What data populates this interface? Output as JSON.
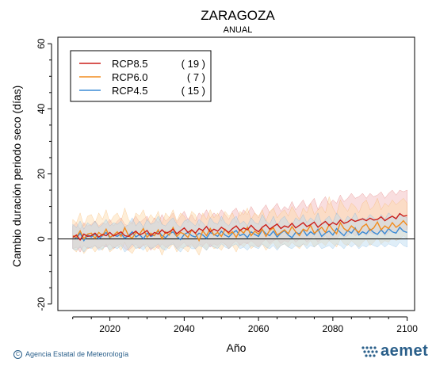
{
  "chart_data": {
    "type": "line",
    "title": "ZARAGOZA",
    "subtitle": "ANUAL",
    "xlabel": "Año",
    "ylabel": "Cambio duración periodo seco (días)",
    "xlim": [
      2006,
      2102
    ],
    "ylim": [
      -22,
      62
    ],
    "xticks": [
      2020,
      2040,
      2060,
      2080,
      2100
    ],
    "yticks": [
      -20,
      0,
      20,
      40,
      60
    ],
    "legend_position": "top-left",
    "series": [
      {
        "name": "RCP8.5",
        "count": "( 19 )",
        "color": "#cc1f1a",
        "band_color": "#f2b5b8",
        "x_start": 2010,
        "values": [
          0.5,
          1.2,
          -0.3,
          1.5,
          0.8,
          1.0,
          1.8,
          0.6,
          1.4,
          1.0,
          2.0,
          0.9,
          1.5,
          2.2,
          1.0,
          0.8,
          1.6,
          2.4,
          1.2,
          1.8,
          2.6,
          1.0,
          2.0,
          1.5,
          2.8,
          1.8,
          2.2,
          3.0,
          1.6,
          2.5,
          3.4,
          2.0,
          2.8,
          1.8,
          3.2,
          2.6,
          3.8,
          2.2,
          3.0,
          2.4,
          3.6,
          2.8,
          2.0,
          3.2,
          4.0,
          2.6,
          3.4,
          2.8,
          4.2,
          3.0,
          2.2,
          3.6,
          4.4,
          3.0,
          3.8,
          4.6,
          3.2,
          4.0,
          3.6,
          4.8,
          3.4,
          4.2,
          5.0,
          3.8,
          4.4,
          5.2,
          3.6,
          4.6,
          5.4,
          4.2,
          5.0,
          4.4,
          5.8,
          4.8,
          5.2,
          6.0,
          5.4,
          5.8,
          6.2,
          5.6,
          6.4,
          5.8,
          6.0,
          6.8,
          5.6,
          6.4,
          7.0,
          6.2,
          7.8,
          7.0,
          7.2
        ],
        "upper": [
          4,
          5,
          3,
          5,
          4,
          4.5,
          5.5,
          4,
          5,
          4.5,
          6,
          4,
          5.5,
          6.5,
          4.5,
          4,
          5.5,
          7,
          5,
          6,
          7,
          4.5,
          6.5,
          5,
          7.5,
          5.5,
          6.5,
          8,
          5,
          7,
          8.5,
          6,
          7.5,
          5.5,
          8,
          7,
          9,
          6.5,
          8,
          7,
          9,
          7.5,
          6,
          8.5,
          9.5,
          7,
          9,
          7.5,
          10,
          8,
          6.5,
          9,
          10.5,
          8,
          9.5,
          11,
          8.5,
          10,
          9,
          11.5,
          9,
          10.5,
          12,
          9.5,
          11,
          12.5,
          9,
          11.5,
          13,
          10.5,
          12,
          11,
          13.5,
          11.5,
          12.5,
          14,
          12.5,
          13,
          14,
          12.5,
          14,
          13,
          13.5,
          14.5,
          12.5,
          14,
          15,
          13.5,
          15,
          14.5,
          15
        ],
        "lower": [
          -3,
          -2.5,
          -4,
          -2,
          -3,
          -2.5,
          -2,
          -3,
          -2,
          -2.5,
          -1.5,
          -3,
          -2,
          -1.5,
          -3,
          -3.5,
          -2.5,
          -1.5,
          -3,
          -2,
          -1.5,
          -3.5,
          -2,
          -3,
          -1.5,
          -2.5,
          -2,
          -1,
          -3,
          -2,
          -1,
          -2.5,
          -1.5,
          -3,
          -1.5,
          -2,
          -1,
          -2.5,
          -1.5,
          -2,
          -1,
          -1.5,
          -3,
          -1.5,
          -0.5,
          -2,
          -1,
          -1.5,
          -0.5,
          -1.5,
          -2.5,
          -1,
          0,
          -1.5,
          -0.5,
          0,
          -1.5,
          -0.5,
          -1,
          0.5,
          -1,
          0,
          0.5,
          -1,
          0,
          1,
          -1,
          0,
          1,
          -0.5,
          0.5,
          0,
          1.5,
          0.5,
          1,
          2,
          1,
          1.5,
          2,
          1,
          2,
          1.5,
          1.5,
          2.5,
          1,
          2,
          3,
          2,
          3,
          2.5,
          3
        ]
      },
      {
        "name": "RCP6.0",
        "count": "(   7 )",
        "color": "#f28c1e",
        "band_color": "#fdd9a8",
        "x_start": 2010,
        "values": [
          1.0,
          0.5,
          2.5,
          0.0,
          1.5,
          1.8,
          0.2,
          2.0,
          1.0,
          3.0,
          0.5,
          1.2,
          2.2,
          0.8,
          3.5,
          1.0,
          0.2,
          2.0,
          1.5,
          3.2,
          0.5,
          1.8,
          1.0,
          2.8,
          0.0,
          2.2,
          1.2,
          3.5,
          0.8,
          2.0,
          1.5,
          0.5,
          2.8,
          1.8,
          -0.5,
          2.5,
          1.0,
          3.2,
          1.2,
          2.0,
          0.8,
          3.0,
          1.5,
          2.2,
          0.5,
          2.8,
          1.8,
          3.6,
          1.0,
          2.4,
          1.5,
          3.0,
          0.8,
          2.6,
          3.4,
          1.2,
          2.0,
          2.8,
          1.6,
          3.8,
          2.2,
          1.0,
          3.0,
          2.4,
          4.2,
          1.8,
          2.6,
          3.6,
          2.0,
          4.4,
          2.8,
          1.6,
          5.0,
          3.2,
          2.4,
          4.0,
          3.0,
          2.0,
          3.8,
          4.6,
          2.6,
          3.4,
          5.2,
          2.8,
          4.0,
          3.2,
          5.0,
          3.6,
          4.4,
          5.6,
          4.2
        ],
        "upper": [
          6,
          5,
          8,
          4,
          7,
          7.5,
          5,
          8,
          6,
          9,
          5,
          7,
          8,
          5.5,
          9.5,
          6,
          4.5,
          8,
          7,
          9,
          5.5,
          7.5,
          6,
          8.5,
          4.5,
          8,
          6.5,
          9,
          5.5,
          8,
          7,
          5,
          8.5,
          7.5,
          4,
          8,
          6,
          9,
          6.5,
          8,
          5.5,
          8.5,
          7,
          8,
          5,
          8.5,
          7.5,
          9.5,
          6,
          8,
          7,
          9,
          5.5,
          8.5,
          9.5,
          6.5,
          8,
          9,
          7,
          10,
          8,
          6,
          9.5,
          8,
          11,
          7.5,
          9,
          10,
          8,
          13,
          9.5,
          7.5,
          12,
          10,
          8.5,
          11,
          10,
          8,
          11,
          12,
          9,
          10,
          12.5,
          9,
          11,
          10,
          12,
          10.5,
          11.5,
          12.5,
          11
        ],
        "lower": [
          -3,
          -4,
          -2,
          -4.5,
          -3,
          -2.5,
          -4,
          -2.5,
          -3.5,
          -1.5,
          -4,
          -3,
          -2,
          -3.5,
          -1,
          -3.5,
          -4.5,
          -2.5,
          -3,
          -1.5,
          -4,
          -2.5,
          -3.5,
          -2,
          -5,
          -2.5,
          -3,
          -1.5,
          -4,
          -2.5,
          -3,
          -4,
          -2,
          -3,
          -5,
          -2,
          -3.5,
          -1.5,
          -3,
          -2.5,
          -3.5,
          -1.5,
          -3,
          -2,
          -4,
          -1.5,
          -2.5,
          -1,
          -3,
          -2,
          -2.5,
          -1.5,
          -3.5,
          -2,
          -1,
          -3,
          -2,
          -1.5,
          -2.5,
          -1,
          -2,
          -3,
          -1.5,
          -2,
          -0.5,
          -2.5,
          -1.5,
          -1,
          -2,
          -0.5,
          -1.5,
          -2.5,
          0,
          -1.5,
          -2,
          -0.5,
          -1.5,
          -2.5,
          -1,
          0,
          -2,
          -1,
          0.5,
          -1.5,
          -0.5,
          -1,
          0.5,
          -0.5,
          0,
          1,
          0
        ]
      },
      {
        "name": "RCP4.5",
        "count": "( 15 )",
        "color": "#3b8bd6",
        "band_color": "#b9daf0",
        "x_start": 2010,
        "values": [
          1.0,
          0.2,
          1.8,
          -0.5,
          1.2,
          0.6,
          1.5,
          0.0,
          1.0,
          2.0,
          0.4,
          1.2,
          0.8,
          1.6,
          0.2,
          1.0,
          2.2,
          0.6,
          1.4,
          0.0,
          1.8,
          0.8,
          1.2,
          2.4,
          1.0,
          0.4,
          1.6,
          2.2,
          0.8,
          -0.2,
          1.4,
          2.0,
          1.0,
          0.6,
          1.8,
          1.2,
          0.2,
          2.0,
          1.4,
          0.8,
          2.4,
          1.2,
          0.6,
          1.8,
          2.6,
          1.0,
          1.6,
          0.4,
          2.2,
          1.4,
          0.8,
          2.8,
          1.6,
          1.0,
          2.4,
          0.6,
          1.8,
          2.6,
          1.2,
          0.4,
          2.0,
          1.6,
          2.8,
          1.0,
          2.2,
          1.4,
          3.0,
          0.8,
          1.8,
          2.4,
          1.2,
          3.2,
          2.0,
          1.0,
          2.6,
          1.8,
          3.4,
          1.2,
          2.2,
          1.6,
          3.0,
          2.0,
          1.4,
          2.8,
          1.6,
          3.2,
          2.2,
          1.8,
          3.6,
          2.4,
          2.0
        ],
        "upper": [
          4.5,
          3.5,
          5.5,
          3,
          5,
          4,
          5.5,
          3.5,
          4.5,
          6,
          4,
          5,
          4.5,
          5.5,
          3.5,
          4.5,
          6.5,
          4,
          5.5,
          3.5,
          6,
          4.5,
          5,
          7,
          4.5,
          4,
          5.5,
          6.5,
          4.5,
          3.5,
          5.5,
          6,
          5,
          4,
          6,
          5,
          3.5,
          6.5,
          5,
          4.5,
          7,
          5,
          4,
          6,
          7,
          4.5,
          5.5,
          4,
          6.5,
          5,
          4.5,
          7.5,
          5.5,
          4.5,
          7,
          4,
          6,
          7,
          5,
          4,
          6.5,
          5.5,
          7.5,
          5,
          6.5,
          5.5,
          8,
          4.5,
          6,
          7,
          5,
          8,
          6.5,
          5,
          7,
          6,
          8,
          5.5,
          6.5,
          6,
          7.5,
          6.5,
          5.5,
          7.5,
          6,
          8,
          7,
          6.5,
          8,
          7,
          6.5
        ],
        "lower": [
          -3,
          -3.5,
          -2.5,
          -4,
          -2.5,
          -3,
          -2,
          -3.5,
          -3,
          -2,
          -3.5,
          -2.5,
          -3,
          -2,
          -4,
          -3,
          -1.5,
          -3,
          -2.5,
          -3.5,
          -2,
          -3,
          -2.5,
          -1.5,
          -3,
          -3.5,
          -2,
          -1.5,
          -3,
          -4,
          -2.5,
          -2,
          -3,
          -3,
          -2,
          -2.5,
          -3.5,
          -2,
          -2.5,
          -3,
          -1.5,
          -2.5,
          -3,
          -2,
          -1.5,
          -3,
          -2.5,
          -3.5,
          -2,
          -2.5,
          -3,
          -1.5,
          -2.5,
          -3,
          -2,
          -3.5,
          -2,
          -1.5,
          -2.5,
          -3,
          -2,
          -2.5,
          -1.5,
          -3,
          -2,
          -2.5,
          -1.5,
          -3,
          -2.5,
          -2,
          -3,
          -1.5,
          -2,
          -3,
          -1.5,
          -2.5,
          -1.5,
          -3,
          -2,
          -2.5,
          -1.5,
          -2,
          -2.5,
          -1.5,
          -2.5,
          -1.5,
          -2,
          -2.5,
          -1,
          -2,
          -2.5
        ]
      }
    ]
  },
  "footer": {
    "credit": "Agencia Estatal de Meteorología",
    "copyright_symbol": "C",
    "logo_text": "aemet"
  }
}
